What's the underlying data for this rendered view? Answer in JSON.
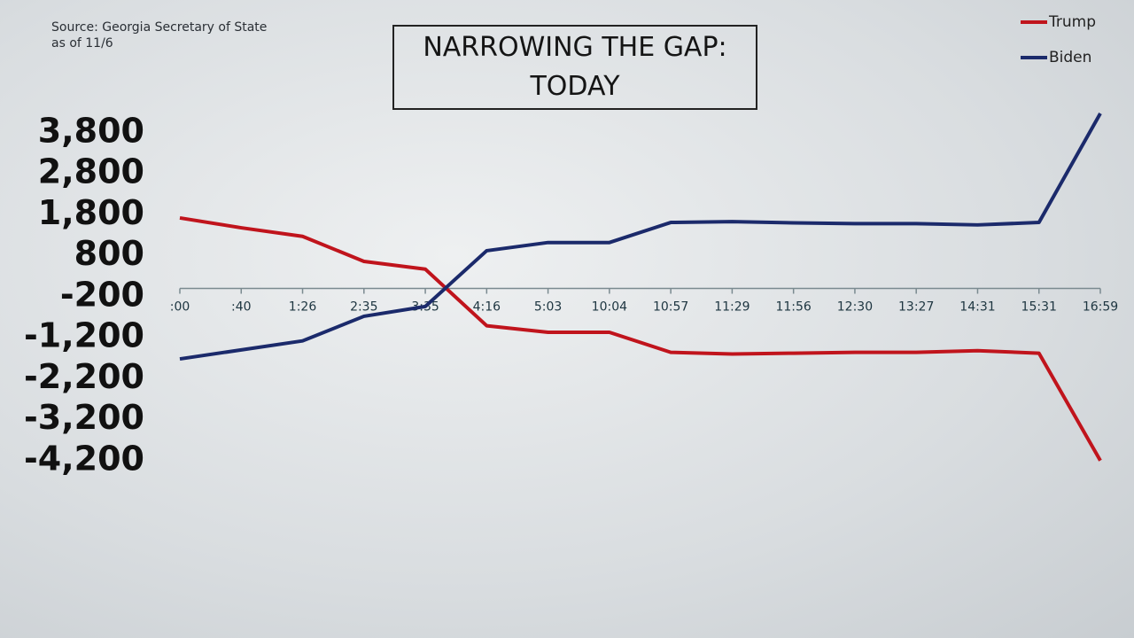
{
  "chart_data": {
    "type": "line",
    "title": "NARROWING THE GAP: TODAY",
    "source": "Source: Georgia Secretary of State",
    "note": "as of 11/6",
    "categories": [
      ":00",
      ":40",
      "1:26",
      "2:35",
      "3:35",
      "4:16",
      "5:03",
      "10:04",
      "10:57",
      "11:29",
      "11:56",
      "12:30",
      "13:27",
      "14:31",
      "15:31",
      "16:59"
    ],
    "series": [
      {
        "name": "Trump",
        "color": "#c0141c",
        "values": [
          1720,
          1480,
          1270,
          660,
          470,
          -910,
          -1070,
          -1070,
          -1560,
          -1600,
          -1580,
          -1560,
          -1560,
          -1520,
          -1580,
          -4200
        ]
      },
      {
        "name": "Biden",
        "color": "#1b2a6b",
        "values": [
          -1720,
          -1500,
          -1280,
          -680,
          -440,
          920,
          1120,
          1120,
          1610,
          1630,
          1600,
          1580,
          1580,
          1550,
          1610,
          4270
        ]
      }
    ],
    "ylim": [
      -4400,
      4400
    ],
    "yticks": [
      {
        "value": 3800,
        "label": "3,800"
      },
      {
        "value": 2800,
        "label": "2,800"
      },
      {
        "value": 1800,
        "label": "1,800"
      },
      800,
      -200,
      {
        "value": -1200,
        "label": "-1,200"
      },
      {
        "value": -2200,
        "label": "-2,200"
      },
      {
        "value": -3200,
        "label": "-3,200"
      },
      {
        "value": -4200,
        "label": "-4,200"
      }
    ],
    "grid": false,
    "legend": "top-right"
  }
}
